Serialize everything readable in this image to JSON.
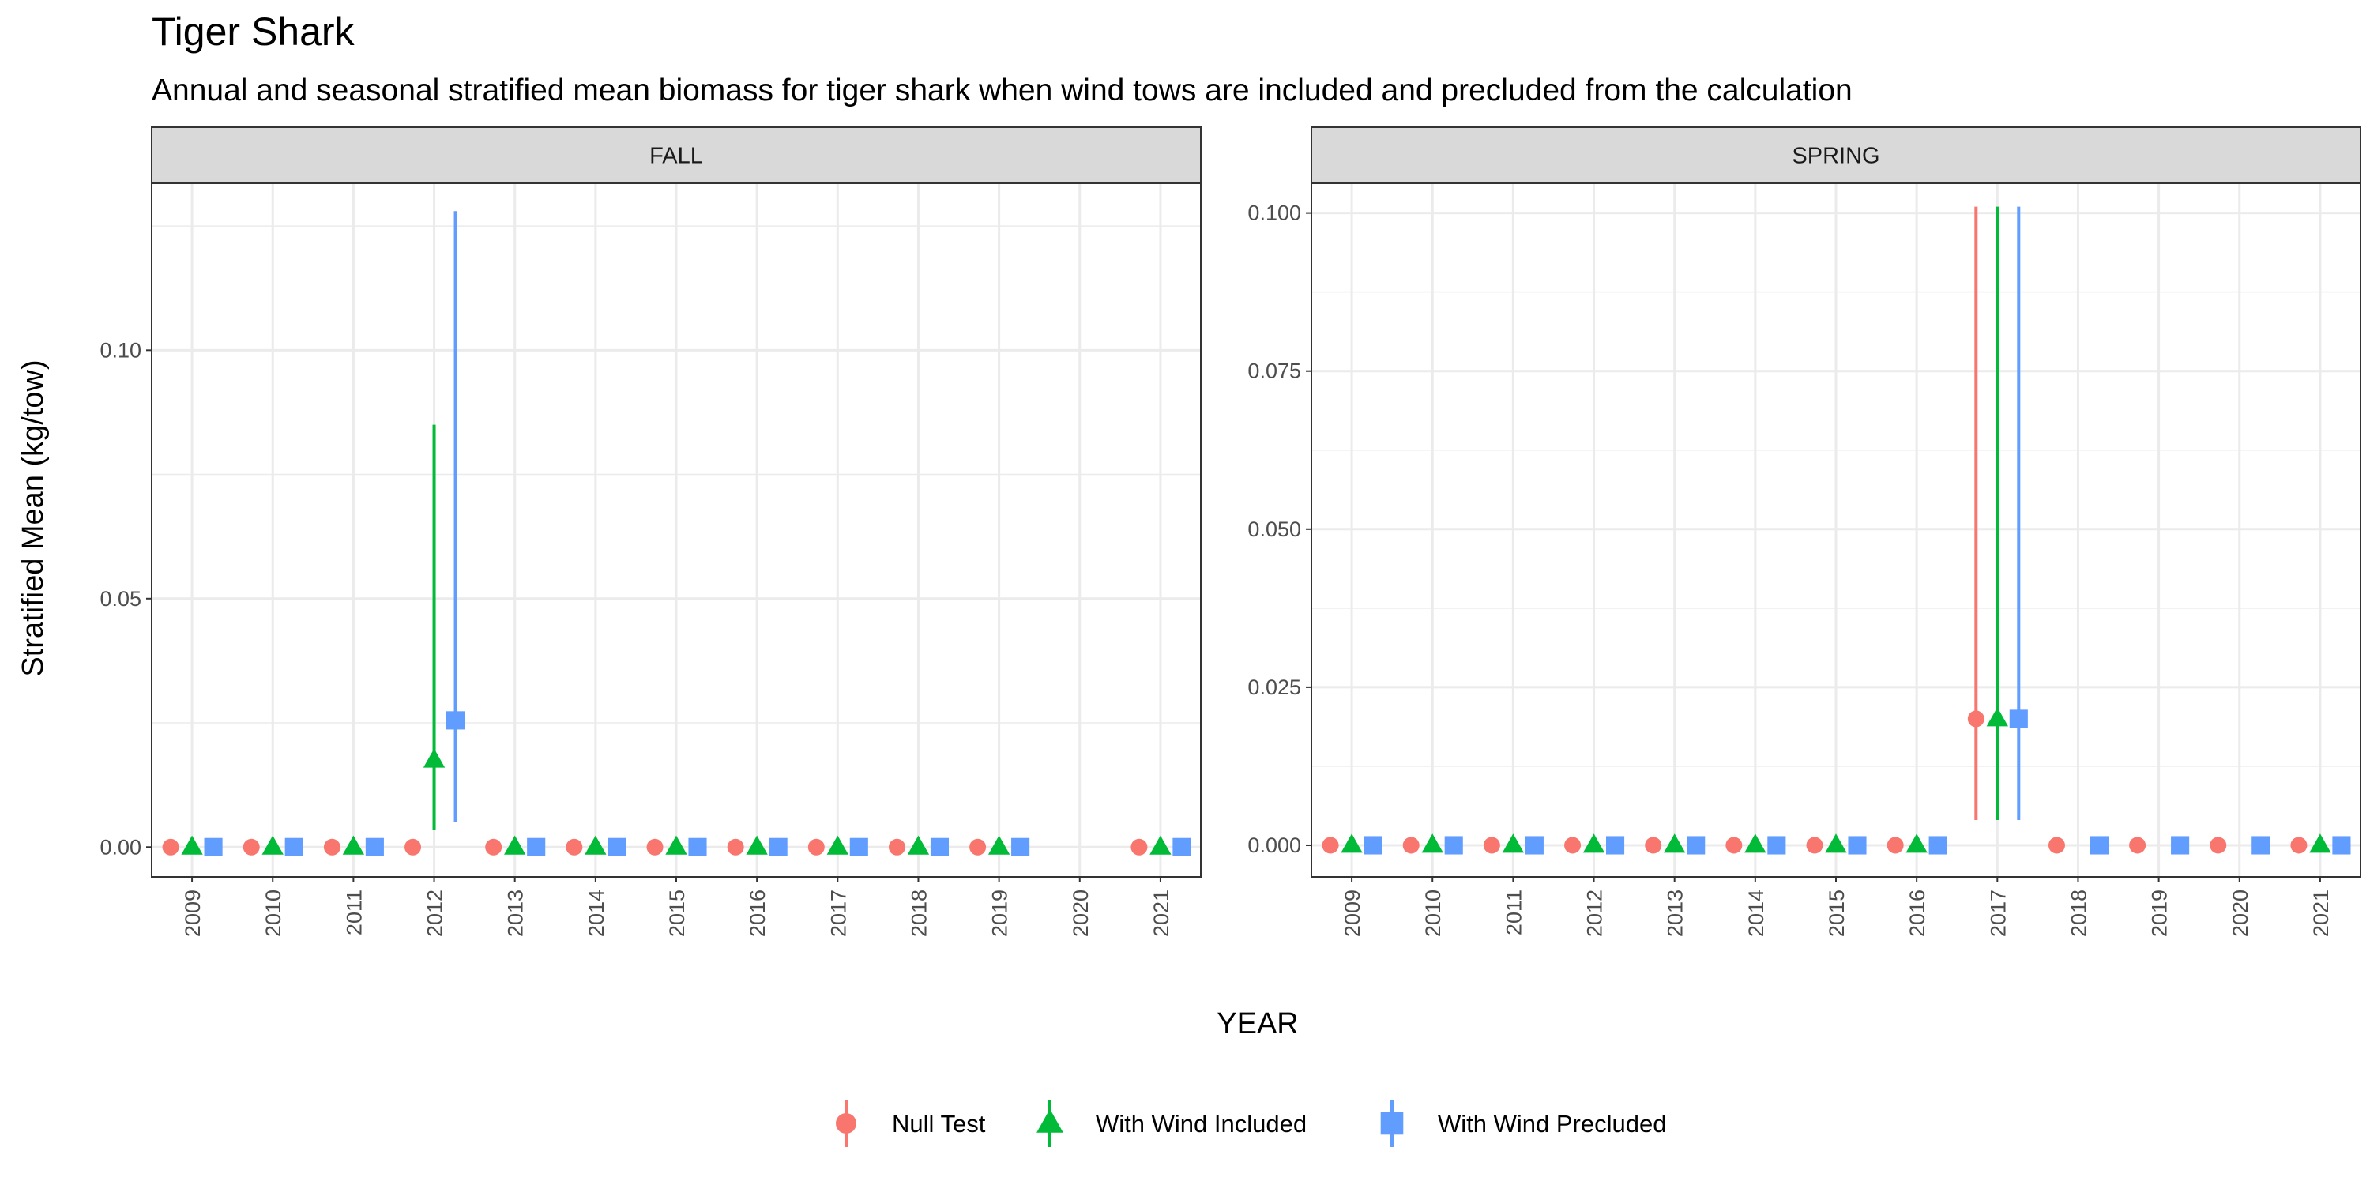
{
  "title": "Tiger Shark",
  "subtitle": "Annual and seasonal stratified mean biomass for tiger shark when wind tows are included and precluded from the calculation",
  "xlabel": "YEAR",
  "ylabel": "Stratified Mean (kg/tow)",
  "legend": {
    "position": "bottom",
    "entries": [
      {
        "name": "Null Test",
        "color": "#F8766D",
        "shape": "circle"
      },
      {
        "name": "With Wind Included",
        "color": "#00BA38",
        "shape": "triangle"
      },
      {
        "name": "With Wind Precluded",
        "color": "#619CFF",
        "shape": "square"
      }
    ]
  },
  "chart_data": [
    {
      "type": "scatter",
      "panel": "FALL",
      "categories": [
        "2009",
        "2010",
        "2011",
        "2012",
        "2013",
        "2014",
        "2015",
        "2016",
        "2017",
        "2018",
        "2019",
        "2020",
        "2021"
      ],
      "ylim": [
        -0.006,
        0.1336
      ],
      "yticks": [
        0.0,
        0.05,
        0.1
      ],
      "ytick_labels": [
        "0.00",
        "0.05",
        "0.10"
      ],
      "grid": true,
      "series": [
        {
          "name": "Null Test",
          "color": "#F8766D",
          "values": [
            0,
            0,
            0,
            0,
            0,
            0,
            0,
            0,
            0,
            0,
            0,
            null,
            0
          ],
          "errors": [
            null,
            null,
            null,
            null,
            null,
            null,
            null,
            null,
            null,
            null,
            null,
            null,
            null
          ]
        },
        {
          "name": "With Wind Included",
          "color": "#00BA38",
          "values": [
            0,
            0,
            0,
            0.0175,
            0,
            0,
            0,
            0,
            0,
            0,
            0,
            null,
            0
          ],
          "errors": [
            null,
            null,
            null,
            [
              0.0035,
              0.085
            ],
            null,
            null,
            null,
            null,
            null,
            null,
            null,
            null,
            null
          ]
        },
        {
          "name": "With Wind Precluded",
          "color": "#619CFF",
          "values": [
            0,
            0,
            0,
            0.0255,
            0,
            0,
            0,
            0,
            0,
            0,
            0,
            null,
            0
          ],
          "errors": [
            null,
            null,
            null,
            [
              0.005,
              0.128
            ],
            null,
            null,
            null,
            null,
            null,
            null,
            null,
            null,
            null
          ]
        }
      ]
    },
    {
      "type": "scatter",
      "panel": "SPRING",
      "categories": [
        "2009",
        "2010",
        "2011",
        "2012",
        "2013",
        "2014",
        "2015",
        "2016",
        "2017",
        "2018",
        "2019",
        "2020",
        "2021"
      ],
      "ylim": [
        -0.005,
        0.1047
      ],
      "yticks": [
        0.0,
        0.025,
        0.05,
        0.075,
        0.1
      ],
      "ytick_labels": [
        "0.000",
        "0.025",
        "0.050",
        "0.075",
        "0.100"
      ],
      "grid": true,
      "series": [
        {
          "name": "Null Test",
          "color": "#F8766D",
          "values": [
            0,
            0,
            0,
            0,
            0,
            0,
            0,
            0,
            0.02,
            0,
            0,
            0,
            0
          ],
          "errors": [
            null,
            null,
            null,
            null,
            null,
            null,
            null,
            null,
            [
              0.004,
              0.101
            ],
            null,
            null,
            null,
            null
          ]
        },
        {
          "name": "With Wind Included",
          "color": "#00BA38",
          "values": [
            0,
            0,
            0,
            0,
            0,
            0,
            0,
            0,
            0.02,
            null,
            null,
            null,
            0
          ],
          "errors": [
            null,
            null,
            null,
            null,
            null,
            null,
            null,
            null,
            [
              0.004,
              0.101
            ],
            null,
            null,
            null,
            null
          ]
        },
        {
          "name": "With Wind Precluded",
          "color": "#619CFF",
          "values": [
            0,
            0,
            0,
            0,
            0,
            0,
            0,
            0,
            0.02,
            0,
            0,
            0,
            0
          ],
          "errors": [
            null,
            null,
            null,
            null,
            null,
            null,
            null,
            null,
            [
              0.004,
              0.101
            ],
            null,
            null,
            null,
            null
          ]
        }
      ]
    }
  ]
}
